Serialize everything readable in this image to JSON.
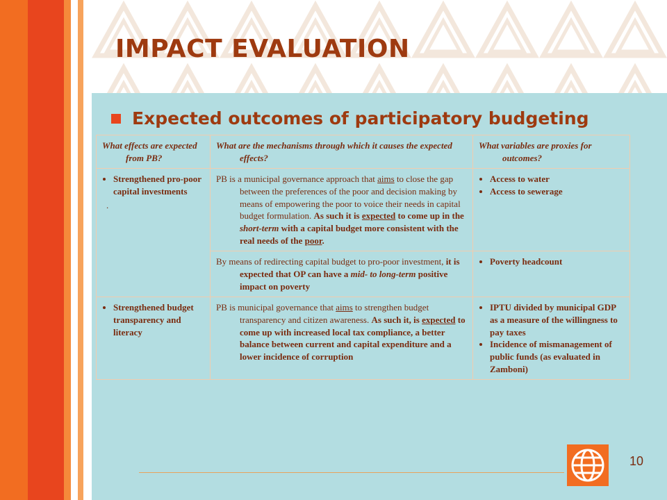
{
  "slide": {
    "title": "IMPACT EVALUATION",
    "subtitle": "Expected outcomes of participatory budgeting",
    "page_number": "10",
    "logo_icon": "globe-icon"
  },
  "colors": {
    "title": "#9e3a10",
    "accent_orange": "#f26d21",
    "accent_red": "#e8451e",
    "panel": "#b3dde1",
    "text": "#7a2c10"
  },
  "table": {
    "headers": [
      "What effects are expected from PB?",
      "What are the mechanisms through which it causes the expected effects?",
      "What variables are proxies for outcomes?"
    ],
    "row1": {
      "effect": "Strengthened pro-poor capital investments",
      "effect_note": ".",
      "mech1": {
        "p1": "PB is a municipal governance approach that",
        "p2": "aims",
        "p3": "to close the gap between the preferences of the poor and decision making by means of empowering the poor to voice their needs in capital budget formulation.",
        "p4": "As such it is",
        "p5": "expected",
        "p6": "to come up in the",
        "p7": "short-term",
        "p8": "with a capital budget more consistent with the real needs of the",
        "p9": "poor",
        "p10": "."
      },
      "proxies1": [
        "Access to water",
        "Access to sewerage"
      ],
      "mech2": {
        "p1": "By means of redirecting capital budget to pro-poor investment,",
        "p2": "it is expected that OP can have a",
        "p3": "mid- to long-term",
        "p4": "positive impact on poverty"
      },
      "proxies2": [
        "Poverty headcount"
      ]
    },
    "row2": {
      "effect": "Strengthened budget transparency and literacy",
      "mech": {
        "p1": "PB is municipal governance that",
        "p2": "aims",
        "p3": "to strengthen budget transparency and citizen awareness.",
        "p4": "As such it, is",
        "p5": "expected",
        "p6": "to come up with increased local tax compliance, a better balance between current and capital expenditure and a lower incidence of corruption"
      },
      "proxy1_bold": "IPTU divided by municipal GDP",
      "proxy1_rest": "as a measure of the willingness to pay taxes",
      "proxy2_bold": "Incidence of mismanagement of public funds",
      "proxy2_rest": "(as evaluated in Zamboni)"
    }
  }
}
